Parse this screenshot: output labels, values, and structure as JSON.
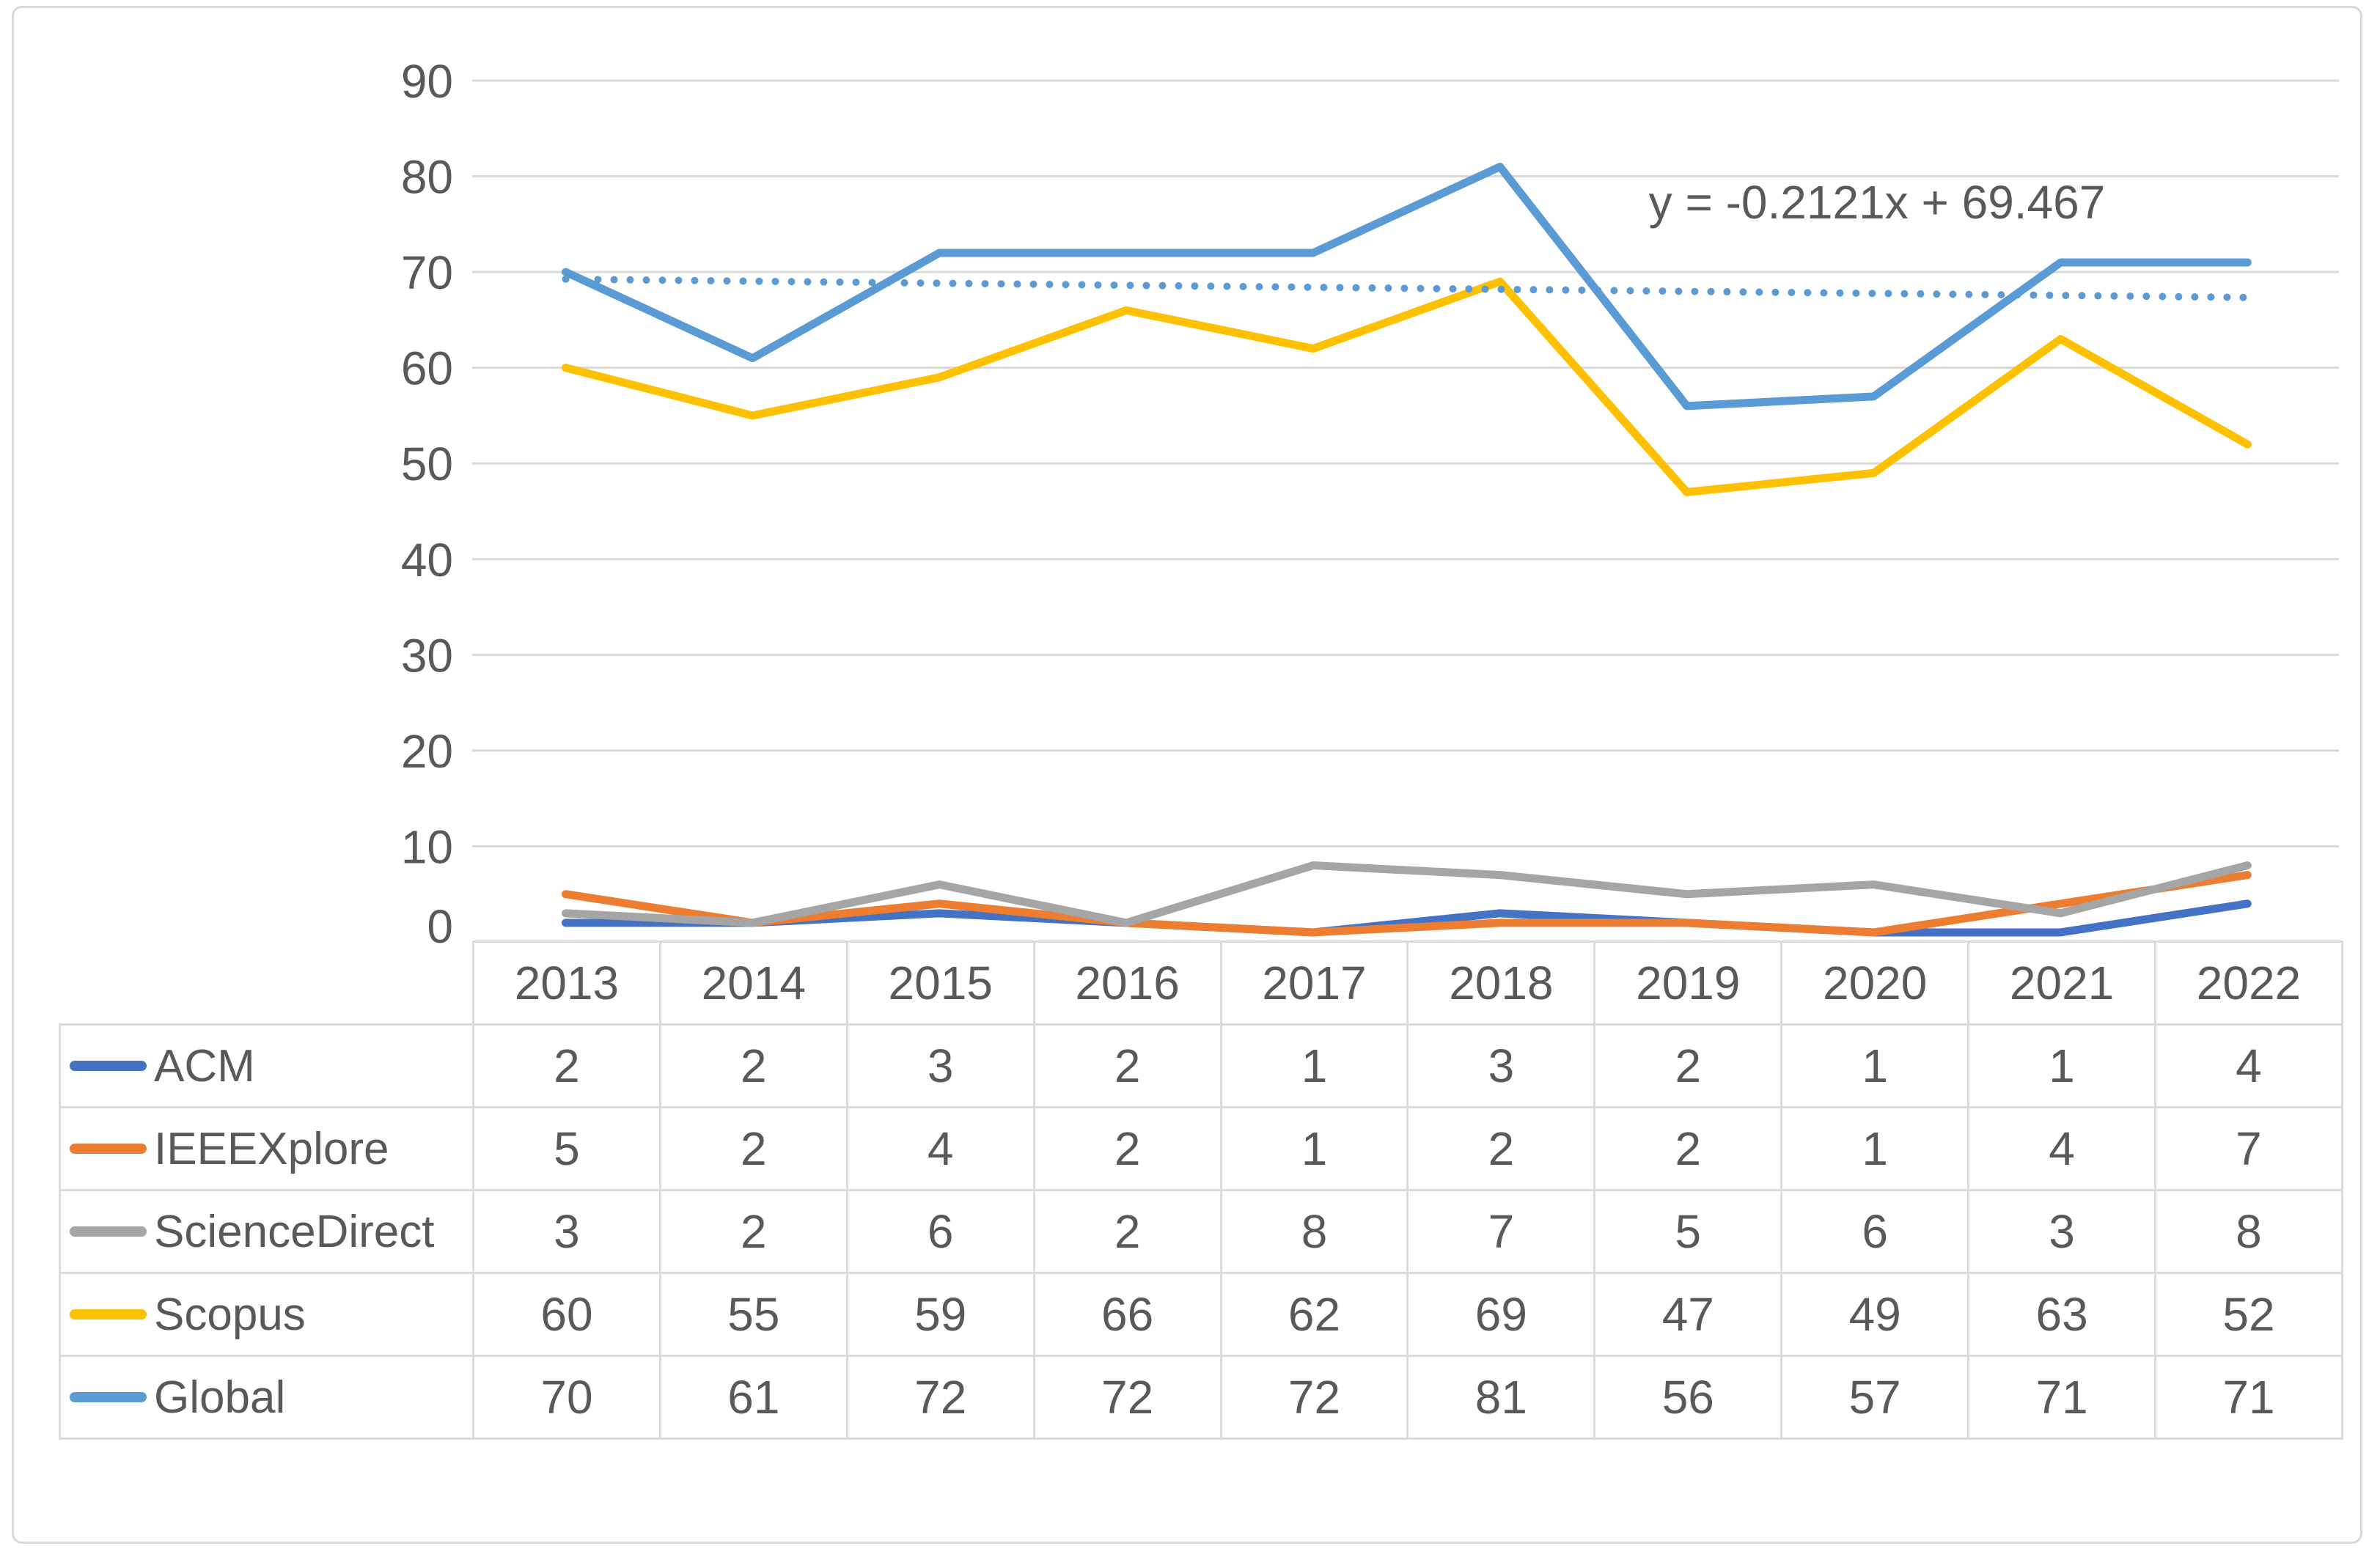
{
  "chart_data": {
    "type": "line",
    "title": "",
    "categories": [
      "2013",
      "2014",
      "2015",
      "2016",
      "2017",
      "2018",
      "2019",
      "2020",
      "2021",
      "2022"
    ],
    "series": [
      {
        "name": "ACM",
        "color": "#4472C4",
        "values": [
          2,
          2,
          3,
          2,
          1,
          3,
          2,
          1,
          1,
          4
        ]
      },
      {
        "name": "IEEEXplore",
        "color": "#ED7D31",
        "values": [
          5,
          2,
          4,
          2,
          1,
          2,
          2,
          1,
          4,
          7
        ]
      },
      {
        "name": "ScienceDirect",
        "color": "#A5A5A5",
        "values": [
          3,
          2,
          6,
          2,
          8,
          7,
          5,
          6,
          3,
          8
        ]
      },
      {
        "name": "Scopus",
        "color": "#FFC000",
        "values": [
          60,
          55,
          59,
          66,
          62,
          69,
          47,
          49,
          63,
          52
        ]
      },
      {
        "name": "Global",
        "color": "#5B9BD5",
        "values": [
          70,
          61,
          72,
          72,
          72,
          81,
          56,
          57,
          71,
          71
        ]
      }
    ],
    "trendline": {
      "equation": "y = -0.2121x + 69.467",
      "slope": -0.2121,
      "intercept": 69.467,
      "applies_to_series": "Global",
      "color": "#5B9BD5",
      "style": "dotted"
    },
    "y_axis": {
      "min": 0,
      "max": 90,
      "step": 10,
      "tick_labels": [
        "0",
        "10",
        "20",
        "30",
        "40",
        "50",
        "60",
        "70",
        "80",
        "90"
      ]
    },
    "xlabel": "",
    "ylabel": "",
    "grid": true,
    "gridline_color": "#D9D9D9",
    "legend_position": "data-table-left",
    "text_color": "#595959"
  }
}
